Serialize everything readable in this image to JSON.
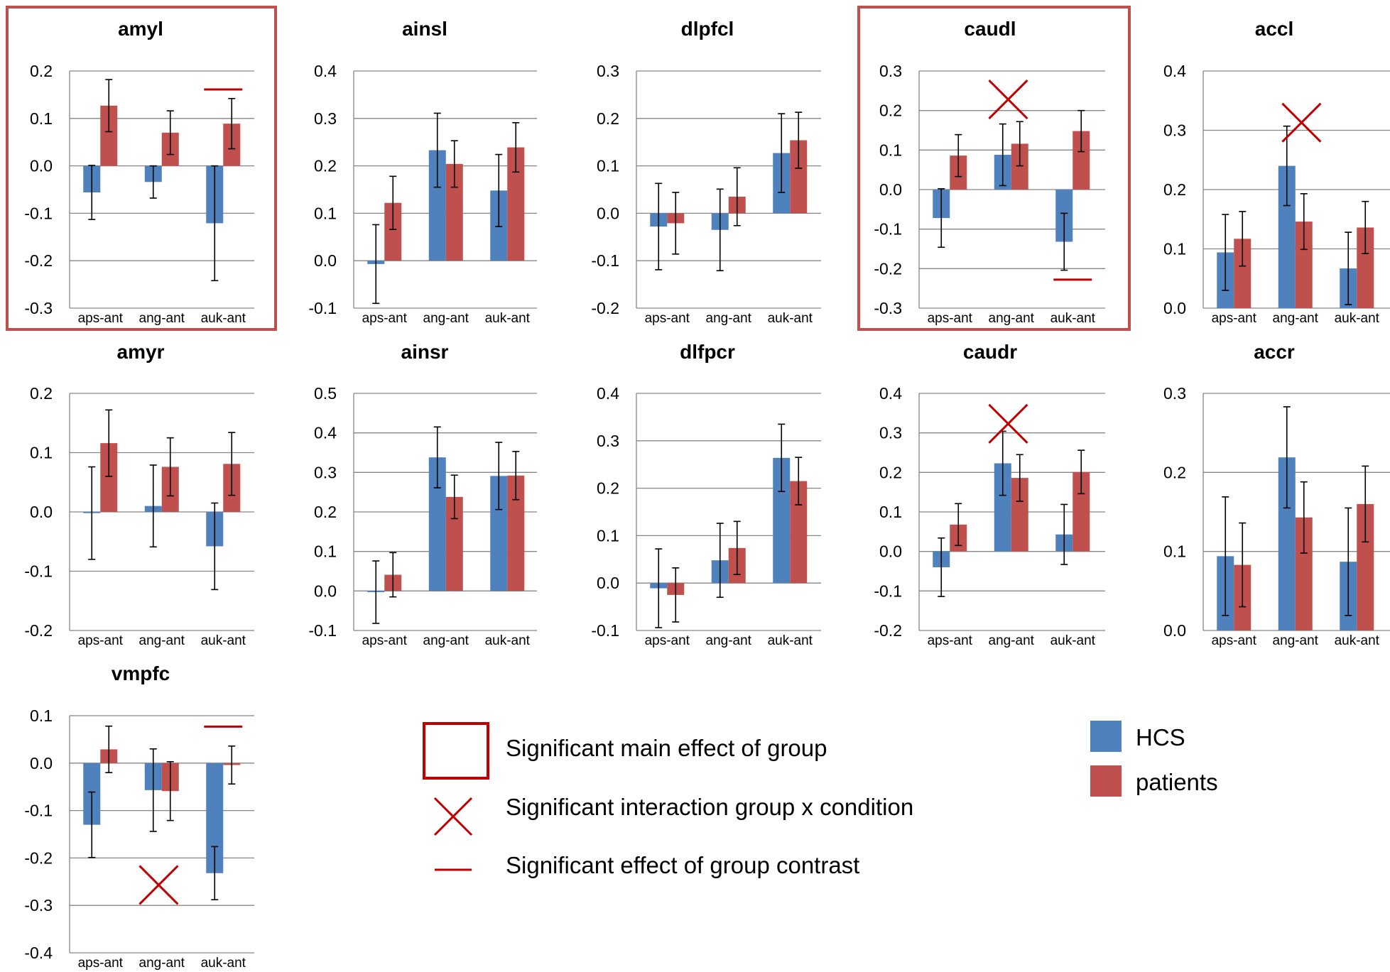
{
  "colors": {
    "hcs": "#4f81bd",
    "patients": "#c0504d",
    "marker": "#c00000",
    "grid": "#868686",
    "errorbar": "#000000"
  },
  "legend": {
    "significance": [
      {
        "icon": "box-icon",
        "text": "Significant main effect of group"
      },
      {
        "icon": "cross-icon",
        "text": "Significant interaction group x condition"
      },
      {
        "icon": "dash-icon",
        "text": "Significant effect of group contrast"
      }
    ],
    "series": [
      {
        "icon": "hcs-swatch",
        "text": "HCS"
      },
      {
        "icon": "patients-swatch",
        "text": "patients"
      }
    ]
  },
  "chart_data": [
    {
      "type": "bar",
      "title": "amyl",
      "categories": [
        "aps-ant",
        "ang-ant",
        "auk-ant"
      ],
      "ylim": [
        -0.3,
        0.2
      ],
      "yticks": [
        "0.2",
        "0.1",
        "0.0",
        "-0.1",
        "-0.2",
        "-0.3"
      ],
      "series": [
        {
          "name": "HCS",
          "values": [
            -0.056,
            -0.034,
            -0.121
          ],
          "err": [
            0.057,
            0.034,
            0.121
          ]
        },
        {
          "name": "patients",
          "values": [
            0.127,
            0.07,
            0.089
          ],
          "err": [
            0.055,
            0.046,
            0.053
          ]
        }
      ],
      "main_effect_group": true,
      "interaction_cross": [],
      "contrast_markers": [
        {
          "category": "auk-ant",
          "y": 0.161
        }
      ]
    },
    {
      "type": "bar",
      "title": "ainsl",
      "categories": [
        "aps-ant",
        "ang-ant",
        "auk-ant"
      ],
      "ylim": [
        -0.1,
        0.4
      ],
      "yticks": [
        "0.4",
        "0.3",
        "0.2",
        "0.1",
        "0.0",
        "-0.1"
      ],
      "series": [
        {
          "name": "HCS",
          "values": [
            -0.007,
            0.233,
            0.148
          ],
          "err": [
            0.083,
            0.078,
            0.076
          ]
        },
        {
          "name": "patients",
          "values": [
            0.122,
            0.204,
            0.239
          ],
          "err": [
            0.056,
            0.049,
            0.052
          ]
        }
      ],
      "main_effect_group": false,
      "interaction_cross": [],
      "contrast_markers": []
    },
    {
      "type": "bar",
      "title": "dlpfcl",
      "categories": [
        "aps-ant",
        "ang-ant",
        "auk-ant"
      ],
      "ylim": [
        -0.2,
        0.3
      ],
      "yticks": [
        "0.3",
        "0.2",
        "0.1",
        "0.0",
        "-0.1",
        "-0.2"
      ],
      "series": [
        {
          "name": "HCS",
          "values": [
            -0.028,
            -0.035,
            0.127
          ],
          "err": [
            0.091,
            0.086,
            0.083
          ]
        },
        {
          "name": "patients",
          "values": [
            -0.021,
            0.035,
            0.154
          ],
          "err": [
            0.065,
            0.061,
            0.059
          ]
        }
      ],
      "main_effect_group": false,
      "interaction_cross": [],
      "contrast_markers": []
    },
    {
      "type": "bar",
      "title": "caudl",
      "categories": [
        "aps-ant",
        "ang-ant",
        "auk-ant"
      ],
      "ylim": [
        -0.3,
        0.3
      ],
      "yticks": [
        "0.3",
        "0.2",
        "0.1",
        "0.0",
        "-0.1",
        "-0.2",
        "-0.3"
      ],
      "series": [
        {
          "name": "HCS",
          "values": [
            -0.072,
            0.088,
            -0.132
          ],
          "err": [
            0.074,
            0.078,
            0.072
          ]
        },
        {
          "name": "patients",
          "values": [
            0.086,
            0.116,
            0.148
          ],
          "err": [
            0.053,
            0.056,
            0.052
          ]
        }
      ],
      "main_effect_group": true,
      "interaction_cross": [
        {
          "x": 1.45,
          "y": 0.228
        }
      ],
      "contrast_markers": [
        {
          "category": "auk-ant",
          "y": -0.228
        }
      ]
    },
    {
      "type": "bar",
      "title": "accl",
      "categories": [
        "aps-ant",
        "ang-ant",
        "auk-ant"
      ],
      "ylim": [
        0.0,
        0.4
      ],
      "yticks": [
        "0.4",
        "0.3",
        "0.2",
        "0.1",
        "0.0"
      ],
      "series": [
        {
          "name": "HCS",
          "values": [
            0.094,
            0.24,
            0.067
          ],
          "err": [
            0.064,
            0.067,
            0.061
          ]
        },
        {
          "name": "patients",
          "values": [
            0.117,
            0.146,
            0.136
          ],
          "err": [
            0.046,
            0.047,
            0.044
          ]
        }
      ],
      "main_effect_group": false,
      "interaction_cross": [
        {
          "x": 1.6,
          "y": 0.313
        }
      ],
      "contrast_markers": []
    },
    {
      "type": "bar",
      "title": "amyr",
      "categories": [
        "aps-ant",
        "ang-ant",
        "auk-ant"
      ],
      "ylim": [
        -0.2,
        0.2
      ],
      "yticks": [
        "0.2",
        "0.1",
        "0.0",
        "-0.1",
        "-0.2"
      ],
      "series": [
        {
          "name": "HCS",
          "values": [
            -0.002,
            0.01,
            -0.058
          ],
          "err": [
            0.078,
            0.069,
            0.073
          ]
        },
        {
          "name": "patients",
          "values": [
            0.116,
            0.076,
            0.081
          ],
          "err": [
            0.056,
            0.049,
            0.053
          ]
        }
      ],
      "main_effect_group": false,
      "interaction_cross": [],
      "contrast_markers": []
    },
    {
      "type": "bar",
      "title": "ainsr",
      "categories": [
        "aps-ant",
        "ang-ant",
        "auk-ant"
      ],
      "ylim": [
        -0.1,
        0.5
      ],
      "yticks": [
        "0.5",
        "0.4",
        "0.3",
        "0.2",
        "0.1",
        "0.0",
        "-0.1"
      ],
      "series": [
        {
          "name": "HCS",
          "values": [
            -0.003,
            0.338,
            0.291
          ],
          "err": [
            0.079,
            0.077,
            0.085
          ]
        },
        {
          "name": "patients",
          "values": [
            0.041,
            0.238,
            0.292
          ],
          "err": [
            0.056,
            0.055,
            0.061
          ]
        }
      ],
      "main_effect_group": false,
      "interaction_cross": [],
      "contrast_markers": []
    },
    {
      "type": "bar",
      "title": "dlfpcr",
      "categories": [
        "aps-ant",
        "ang-ant",
        "auk-ant"
      ],
      "ylim": [
        -0.1,
        0.4
      ],
      "yticks": [
        "0.4",
        "0.3",
        "0.2",
        "0.1",
        "0.0",
        "-0.1"
      ],
      "series": [
        {
          "name": "HCS",
          "values": [
            -0.011,
            0.048,
            0.264
          ],
          "err": [
            0.083,
            0.078,
            0.071
          ]
        },
        {
          "name": "patients",
          "values": [
            -0.025,
            0.074,
            0.215
          ],
          "err": [
            0.057,
            0.056,
            0.05
          ]
        }
      ],
      "main_effect_group": false,
      "interaction_cross": [],
      "contrast_markers": []
    },
    {
      "type": "bar",
      "title": "caudr",
      "categories": [
        "aps-ant",
        "ang-ant",
        "auk-ant"
      ],
      "ylim": [
        -0.2,
        0.4
      ],
      "yticks": [
        "0.4",
        "0.3",
        "0.2",
        "0.1",
        "0.0",
        "-0.1",
        "-0.2"
      ],
      "series": [
        {
          "name": "HCS",
          "values": [
            -0.04,
            0.223,
            0.043
          ],
          "err": [
            0.074,
            0.081,
            0.076
          ]
        },
        {
          "name": "patients",
          "values": [
            0.068,
            0.186,
            0.201
          ],
          "err": [
            0.053,
            0.059,
            0.055
          ]
        }
      ],
      "main_effect_group": false,
      "interaction_cross": [
        {
          "x": 1.45,
          "y": 0.323
        }
      ],
      "contrast_markers": []
    },
    {
      "type": "bar",
      "title": "accr",
      "categories": [
        "aps-ant",
        "ang-ant",
        "auk-ant"
      ],
      "ylim": [
        0.0,
        0.3
      ],
      "yticks": [
        "0.3",
        "0.2",
        "0.1",
        "0.0"
      ],
      "series": [
        {
          "name": "HCS",
          "values": [
            0.094,
            0.219,
            0.087
          ],
          "err": [
            0.075,
            0.064,
            0.068
          ]
        },
        {
          "name": "patients",
          "values": [
            0.083,
            0.143,
            0.16
          ],
          "err": [
            0.053,
            0.045,
            0.048
          ]
        }
      ],
      "main_effect_group": false,
      "interaction_cross": [],
      "contrast_markers": []
    },
    {
      "type": "bar",
      "title": "vmpfc",
      "categories": [
        "aps-ant",
        "ang-ant",
        "auk-ant"
      ],
      "ylim": [
        -0.4,
        0.1
      ],
      "yticks": [
        "0.1",
        "0.0",
        "-0.1",
        "-0.2",
        "-0.3",
        "-0.4"
      ],
      "series": [
        {
          "name": "HCS",
          "values": [
            -0.13,
            -0.057,
            -0.232
          ],
          "err": [
            0.069,
            0.087,
            0.056
          ]
        },
        {
          "name": "patients",
          "values": [
            0.029,
            -0.059,
            -0.004
          ],
          "err": [
            0.049,
            0.062,
            0.04
          ]
        }
      ],
      "main_effect_group": false,
      "interaction_cross": [
        {
          "x": 1.45,
          "y": -0.257
        }
      ],
      "contrast_markers": [
        {
          "category": "auk-ant",
          "y": 0.077
        }
      ]
    }
  ]
}
